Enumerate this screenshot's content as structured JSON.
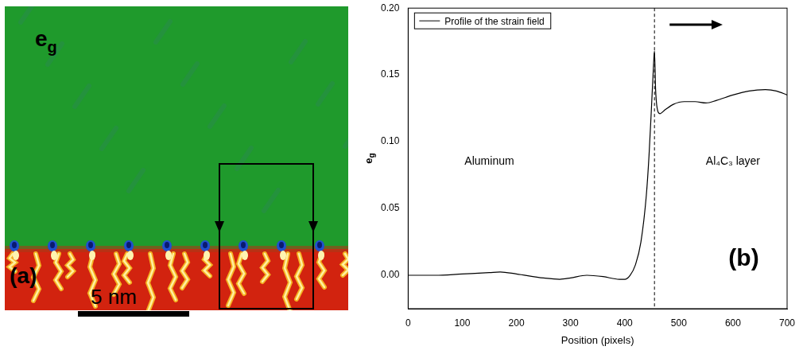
{
  "panel_a": {
    "field_label": {
      "text": "e",
      "subscript": "g"
    },
    "panel_letter": "(a)",
    "scale_bar": "5 nm"
  },
  "chart_data": {
    "type": "line",
    "panel_letter": "(b)",
    "xlabel": "Position (pixels)",
    "ylabel": {
      "text": "e",
      "subscript": "g"
    },
    "xlim": [
      0,
      700
    ],
    "xticks": [
      0,
      100,
      200,
      300,
      400,
      500,
      600,
      700
    ],
    "ylim": [
      -0.025,
      0.2
    ],
    "yticks": [
      {
        "value": 0,
        "label": "0.00"
      },
      {
        "value": 0.05,
        "label": "0.05"
      },
      {
        "value": 0.1,
        "label": "0.10"
      },
      {
        "value": 0.15,
        "label": "0.15"
      },
      {
        "value": 0.2,
        "label": "0.20"
      }
    ],
    "grid": false,
    "legend": "upper left",
    "dashed_line_x": 455,
    "annotations": [
      "Aluminum",
      "Al₄C₃ layer"
    ],
    "series": [
      {
        "name": "Profile of the strain field",
        "color": "#000000",
        "line_style": "solid",
        "x": [
          0,
          50,
          100,
          150,
          170,
          200,
          250,
          280,
          300,
          330,
          360,
          390,
          400,
          410,
          420,
          430,
          440,
          445,
          450,
          453,
          455,
          457,
          460,
          465,
          475,
          490,
          510,
          530,
          550,
          570,
          600,
          630,
          660,
          680,
          700
        ],
        "values": [
          0.0,
          0.0,
          0.001,
          0.002,
          0.0025,
          0.001,
          -0.002,
          -0.003,
          -0.002,
          0.0,
          -0.001,
          -0.003,
          -0.003,
          0.0,
          0.008,
          0.025,
          0.06,
          0.09,
          0.13,
          0.155,
          0.168,
          0.14,
          0.125,
          0.121,
          0.124,
          0.128,
          0.13,
          0.13,
          0.129,
          0.131,
          0.135,
          0.138,
          0.139,
          0.138,
          0.135
        ]
      }
    ]
  }
}
